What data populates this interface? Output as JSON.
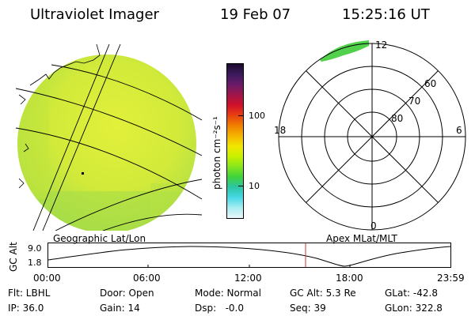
{
  "header": {
    "instrument": "Ultraviolet Imager",
    "date": "19 Feb 07",
    "time": "15:25:16 UT"
  },
  "left_panel": {
    "caption": "Geographic Lat/Lon"
  },
  "colorbar": {
    "label": "photon cm⁻²s⁻¹",
    "ticks": [
      "100",
      "10"
    ],
    "colors": [
      "#1a0b2e",
      "#3c1a5b",
      "#6a1b6a",
      "#a0154a",
      "#d0102a",
      "#e84010",
      "#f07f00",
      "#f5b400",
      "#f2e600",
      "#c8f000",
      "#86e61e",
      "#3fd23a",
      "#2cc6a6",
      "#48d8e6",
      "#a8ecf2",
      "#eaf8fa"
    ]
  },
  "right_panel": {
    "caption": "Apex MLat/MLT",
    "mlt_labels": {
      "top": "12",
      "left": "18",
      "right": "6",
      "bottom": "0"
    },
    "lat_labels": [
      "60",
      "70",
      "80"
    ]
  },
  "alt_plot": {
    "ylabel": "GC Alt",
    "ytick_top": "9.0",
    "ytick_bottom": "1.8",
    "xticks": [
      "00:00",
      "06:00",
      "12:00",
      "18:00",
      "23:59"
    ]
  },
  "status": {
    "filter": "Flt: LBHL",
    "ip": "IP: 36.0",
    "door": "Door: Open",
    "gain": "Gain: 14",
    "mode": "Mode: Normal",
    "dsp": "Dsp:   -0.0",
    "gc_alt": "GC Alt: 5.3 Re",
    "seq": "Seq: 39",
    "glat": "GLat: -42.8",
    "glon": "GLon: 322.8"
  },
  "colors": {
    "background": "#ffffff",
    "image_fill": "#d6ec38",
    "time_marker": "#cc3333"
  }
}
